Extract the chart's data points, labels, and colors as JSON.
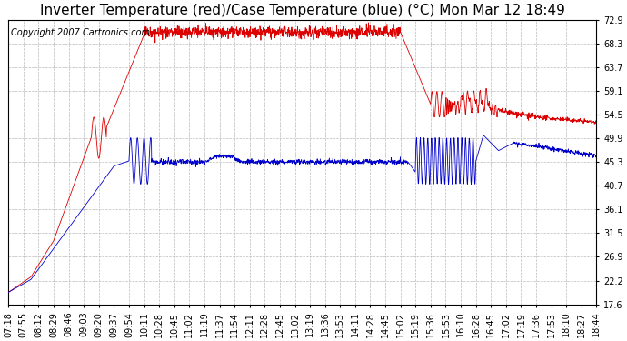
{
  "title": "Inverter Temperature (red)/Case Temperature (blue) (°C) Mon Mar 12 18:49",
  "copyright": "Copyright 2007 Cartronics.com",
  "background_color": "#ffffff",
  "plot_bg_color": "#ffffff",
  "grid_color": "#bbbbbb",
  "line_color_red": "#dd0000",
  "line_color_blue": "#0000cc",
  "ylim_min": 17.6,
  "ylim_max": 72.9,
  "yticks": [
    17.6,
    22.2,
    26.9,
    31.5,
    36.1,
    40.7,
    45.3,
    49.9,
    54.5,
    59.1,
    63.7,
    68.3,
    72.9
  ],
  "x_labels": [
    "07:18",
    "07:55",
    "08:12",
    "08:29",
    "08:46",
    "09:03",
    "09:20",
    "09:37",
    "09:54",
    "10:11",
    "10:28",
    "10:45",
    "11:02",
    "11:19",
    "11:37",
    "11:54",
    "12:11",
    "12:28",
    "12:45",
    "13:02",
    "13:19",
    "13:36",
    "13:53",
    "14:11",
    "14:28",
    "14:45",
    "15:02",
    "15:19",
    "15:36",
    "15:53",
    "16:10",
    "16:28",
    "16:45",
    "17:02",
    "17:19",
    "17:36",
    "17:53",
    "18:10",
    "18:27",
    "18:44"
  ],
  "title_fontsize": 11,
  "tick_fontsize": 7,
  "copyright_fontsize": 7
}
